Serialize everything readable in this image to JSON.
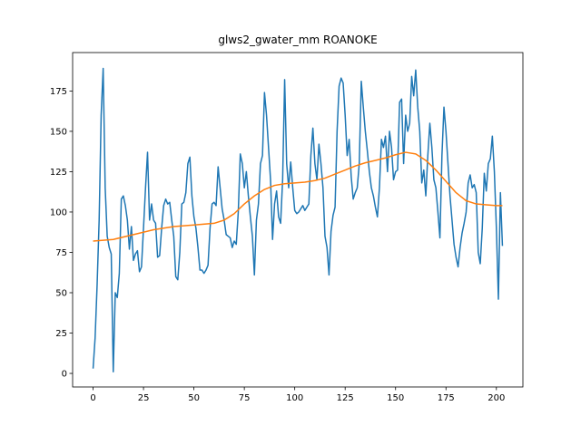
{
  "chart_data": {
    "type": "line",
    "title": "glws2_gwater_mm ROANOKE",
    "xlim": [
      -10.15,
      213.15
    ],
    "ylim": [
      -8.4,
      198.8
    ],
    "xticks": [
      0,
      25,
      50,
      75,
      100,
      125,
      150,
      175,
      200
    ],
    "yticks": [
      0,
      25,
      50,
      75,
      100,
      125,
      150,
      175
    ],
    "series": [
      {
        "color": "#1f77b4",
        "values": [
          3,
          22,
          55,
          95,
          160,
          189,
          115,
          85,
          78,
          74,
          1,
          50,
          47,
          62,
          108,
          110,
          104,
          95,
          77,
          91,
          70,
          74,
          76,
          63,
          66,
          90,
          115,
          137,
          95,
          105,
          95,
          93,
          72,
          73,
          90,
          104,
          108,
          105,
          106,
          95,
          85,
          60,
          58,
          75,
          105,
          106,
          112,
          130,
          134,
          110,
          97,
          90,
          78,
          64,
          64,
          62,
          64,
          67,
          90,
          105,
          106,
          104,
          128,
          115,
          102,
          95,
          86,
          85,
          84,
          78,
          82,
          80,
          100,
          136,
          130,
          115,
          125,
          110,
          97,
          85,
          61,
          95,
          105,
          130,
          135,
          174,
          160,
          140,
          120,
          83,
          105,
          113,
          97,
          93,
          120,
          182,
          130,
          115,
          131,
          115,
          101,
          99,
          100,
          102,
          104,
          101,
          103,
          105,
          135,
          152,
          130,
          120,
          142,
          130,
          115,
          85,
          78,
          61,
          88,
          98,
          103,
          150,
          178,
          183,
          180,
          160,
          135,
          145,
          122,
          108,
          112,
          115,
          130,
          181,
          165,
          150,
          138,
          125,
          115,
          110,
          103,
          97,
          115,
          145,
          140,
          147,
          125,
          150,
          140,
          120,
          125,
          126,
          168,
          170,
          130,
          160,
          150,
          155,
          184,
          172,
          188,
          165,
          150,
          118,
          126,
          110,
          135,
          155,
          140,
          120,
          115,
          100,
          84,
          135,
          165,
          150,
          130,
          110,
          95,
          80,
          72,
          66,
          78,
          87,
          93,
          100,
          118,
          123,
          115,
          117,
          112,
          75,
          68,
          90,
          124,
          113,
          130,
          133,
          147,
          125,
          90,
          46,
          112,
          79
        ]
      },
      {
        "color": "#ff7f0e",
        "x": [
          0,
          10,
          20,
          30,
          40,
          50,
          60,
          65,
          70,
          75,
          80,
          85,
          90,
          95,
          100,
          105,
          110,
          115,
          120,
          125,
          130,
          135,
          140,
          145,
          150,
          155,
          160,
          165,
          170,
          175,
          180,
          185,
          190,
          195,
          200,
          203
        ],
        "values": [
          82,
          83,
          86,
          89,
          91,
          92,
          93,
          95,
          99,
          105,
          110,
          114,
          116.5,
          117.5,
          118,
          118.5,
          119.5,
          121,
          123.5,
          126,
          128.5,
          130.5,
          132,
          133.5,
          135.5,
          137,
          136,
          132,
          126,
          119,
          112,
          107,
          105,
          104.5,
          104,
          104
        ]
      }
    ]
  }
}
